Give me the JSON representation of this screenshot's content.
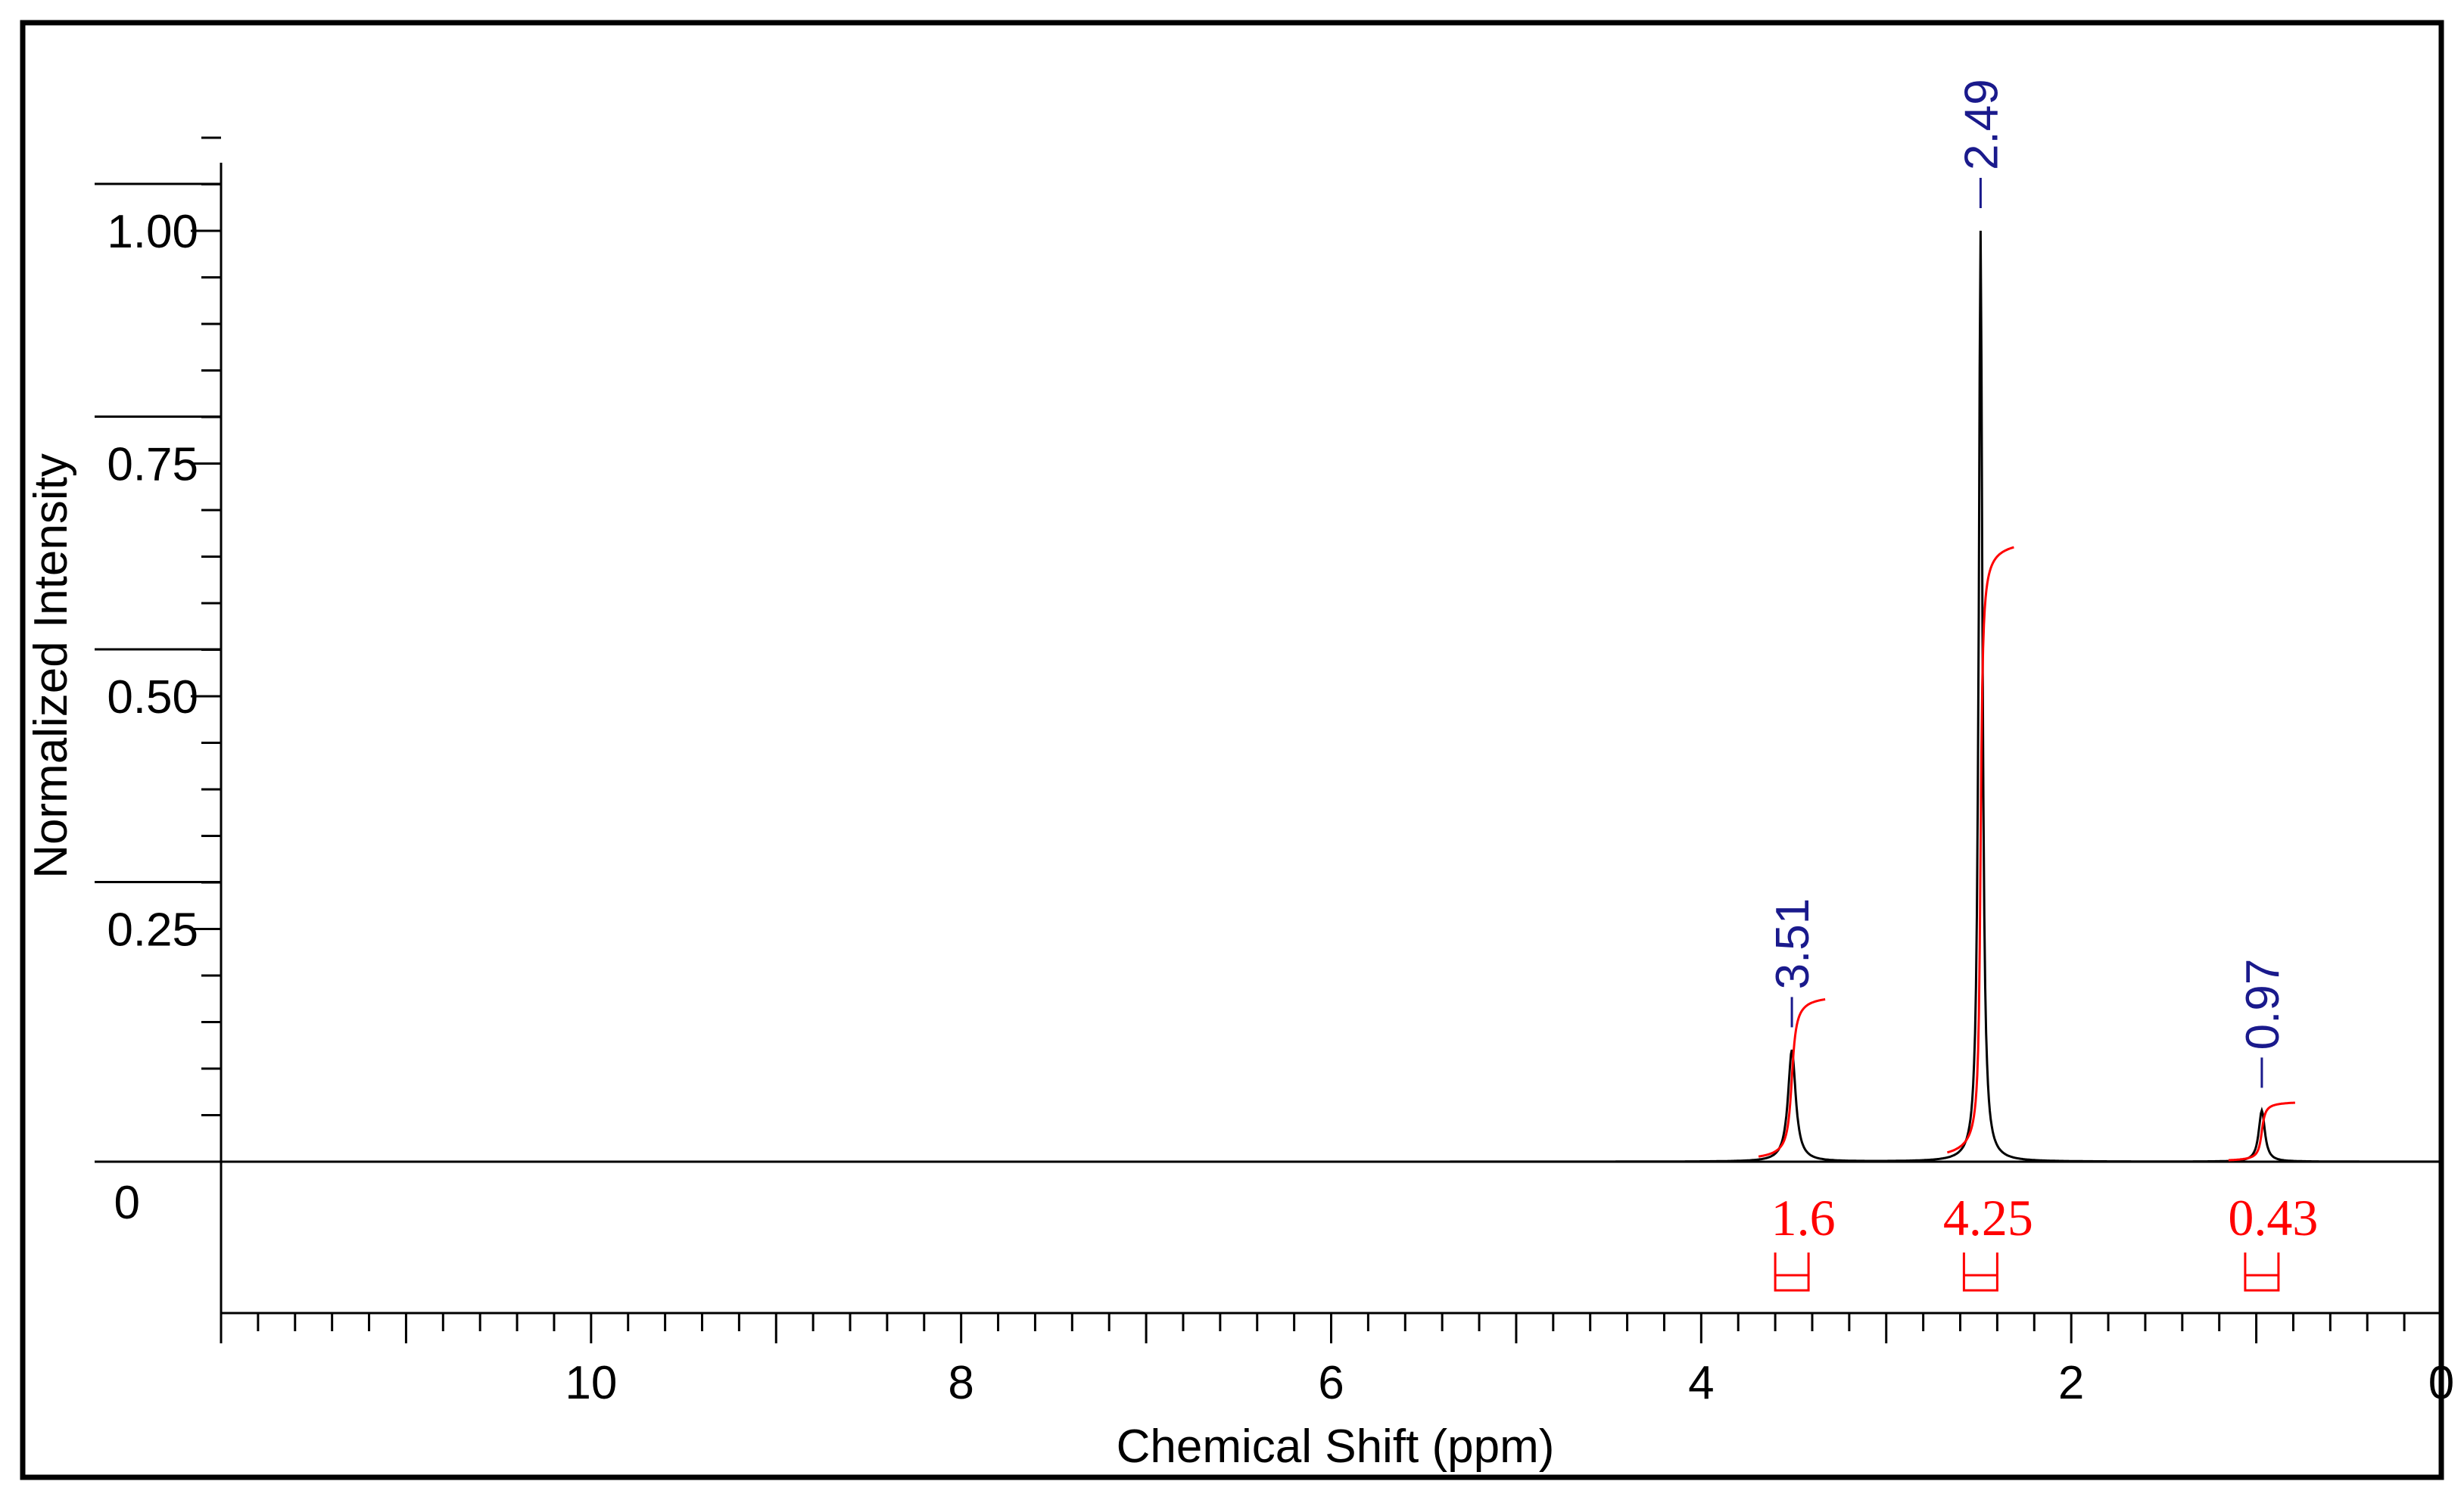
{
  "chart_data": {
    "type": "line",
    "title": "",
    "xlabel": "Chemical Shift (ppm)",
    "ylabel": "Normalized Intensity",
    "xlim": [
      12,
      0
    ],
    "ylim": [
      -0.17,
      1.08
    ],
    "x_ticks": [
      "10",
      "8",
      "6",
      "4",
      "2",
      "0"
    ],
    "x_tick_values": [
      10,
      8,
      6,
      4,
      2,
      0
    ],
    "y_ticks": [
      "0",
      "0.25",
      "0.50",
      "0.75",
      "1.00"
    ],
    "y_tick_values": [
      0,
      0.25,
      0.5,
      0.75,
      1.0
    ],
    "peaks": [
      {
        "label": "3.51",
        "x": 3.51,
        "y": 0.12,
        "width": 0.025,
        "integral": "1.6",
        "integral_height": 0.18
      },
      {
        "label": "2.49",
        "x": 2.49,
        "y": 1.0,
        "width": 0.012,
        "integral": "4.25",
        "integral_height": 0.67
      },
      {
        "label": "0.97",
        "x": 0.97,
        "y": 0.055,
        "width": 0.02,
        "integral": "0.43",
        "integral_height": 0.065
      }
    ],
    "grid": false,
    "legend": "none",
    "colors": {
      "spectrum": "#000000",
      "integral": "#ff0000",
      "peak_label": "#1a1a8c"
    }
  }
}
